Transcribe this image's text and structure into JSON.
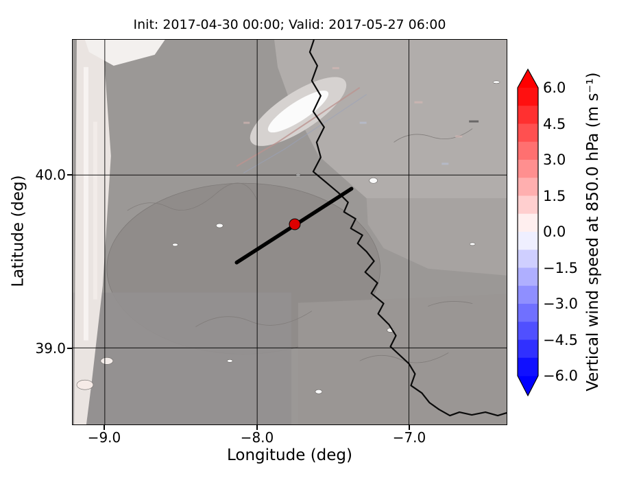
{
  "chart_data": {
    "type": "heatmap",
    "title": "Init: 2017-04-30 00:00; Valid: 2017-05-27 06:00",
    "xlabel": "Longitude (deg)",
    "ylabel": "Latitude (deg)",
    "xlim": [
      -9.2,
      -6.35
    ],
    "ylim": [
      38.55,
      40.8
    ],
    "xticks": [
      -9.0,
      -8.0,
      -7.0
    ],
    "xtick_labels": [
      "−9.0",
      "−8.0",
      "−7.0"
    ],
    "yticks": [
      40.0,
      39.0
    ],
    "ytick_labels": [
      "40.0",
      "39.0"
    ],
    "grid": true,
    "colorbar": {
      "label": "Vertical wind speed at 850.0 hPa (m s⁻¹)",
      "ticks": [
        6.0,
        4.5,
        3.0,
        1.5,
        0.0,
        -1.5,
        -3.0,
        -4.5,
        -6.0
      ],
      "tick_labels": [
        "6.0",
        "4.5",
        "3.0",
        "1.5",
        "0.0",
        "−1.5",
        "−3.0",
        "−4.5",
        "−6.0"
      ],
      "min": -6.0,
      "max": 6.0,
      "levels_step": 0.75,
      "cmap": "blue-white-red",
      "extend": "both",
      "color_positive": "#ff0000",
      "color_negative": "#0000ff",
      "color_zero": "#ffffff"
    },
    "overlays": {
      "marker": {
        "lon": -7.75,
        "lat": 39.72,
        "color": "#dd0000"
      },
      "cross_section_line": {
        "lon_from": -8.14,
        "lat_from": 39.5,
        "lon_to": -7.38,
        "lat_to": 39.92,
        "color": "#000000"
      }
    },
    "description": "Filled-contour map of vertical wind speed (values near 0 m/s) over gray terrain shading with a black border/coast line, a thick black cross-section line and a red location marker"
  }
}
